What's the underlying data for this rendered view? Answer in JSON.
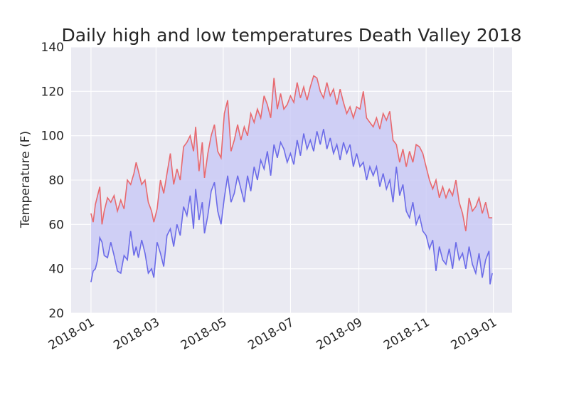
{
  "chart_data": {
    "type": "line",
    "title": "Daily high and low temperatures Death Valley 2018",
    "xlabel": "",
    "ylabel": "Temperature (F)",
    "ylim": [
      20,
      140
    ],
    "xlim": [
      "2017-12-14",
      "2019-01-18"
    ],
    "yticks": [
      "20",
      "40",
      "60",
      "80",
      "100",
      "120",
      "140"
    ],
    "xticks": [
      "2018-01",
      "2018-03",
      "2018-05",
      "2018-07",
      "2018-09",
      "2018-11",
      "2019-01"
    ],
    "grid": true,
    "legend": "none",
    "fill_between": true,
    "colors": {
      "high": "#e8696e",
      "low": "#6b6be8",
      "fill": "#c8c8f5",
      "axes_bg": "#eaeaf2",
      "grid": "#ffffff"
    },
    "series": [
      {
        "key": "high",
        "points": [
          [
            "2018-01-01",
            65
          ],
          [
            "2018-01-03",
            61
          ],
          [
            "2018-01-05",
            69
          ],
          [
            "2018-01-07",
            73
          ],
          [
            "2018-01-09",
            77
          ],
          [
            "2018-01-11",
            60
          ],
          [
            "2018-01-13",
            66
          ],
          [
            "2018-01-16",
            72
          ],
          [
            "2018-01-19",
            70
          ],
          [
            "2018-01-22",
            73
          ],
          [
            "2018-01-25",
            66
          ],
          [
            "2018-01-28",
            71
          ],
          [
            "2018-01-31",
            67
          ],
          [
            "2018-02-03",
            80
          ],
          [
            "2018-02-06",
            78
          ],
          [
            "2018-02-09",
            83
          ],
          [
            "2018-02-11",
            88
          ],
          [
            "2018-02-13",
            84
          ],
          [
            "2018-02-16",
            78
          ],
          [
            "2018-02-19",
            80
          ],
          [
            "2018-02-22",
            70
          ],
          [
            "2018-02-25",
            66
          ],
          [
            "2018-02-27",
            61
          ],
          [
            "2018-03-02",
            67
          ],
          [
            "2018-03-05",
            80
          ],
          [
            "2018-03-08",
            74
          ],
          [
            "2018-03-11",
            83
          ],
          [
            "2018-03-14",
            92
          ],
          [
            "2018-03-17",
            78
          ],
          [
            "2018-03-20",
            85
          ],
          [
            "2018-03-23",
            80
          ],
          [
            "2018-03-26",
            95
          ],
          [
            "2018-03-29",
            97
          ],
          [
            "2018-04-01",
            100
          ],
          [
            "2018-04-04",
            93
          ],
          [
            "2018-04-06",
            104
          ],
          [
            "2018-04-09",
            84
          ],
          [
            "2018-04-12",
            97
          ],
          [
            "2018-04-14",
            81
          ],
          [
            "2018-04-17",
            92
          ],
          [
            "2018-04-20",
            100
          ],
          [
            "2018-04-23",
            105
          ],
          [
            "2018-04-26",
            93
          ],
          [
            "2018-04-29",
            90
          ],
          [
            "2018-05-02",
            110
          ],
          [
            "2018-05-05",
            116
          ],
          [
            "2018-05-08",
            93
          ],
          [
            "2018-05-11",
            98
          ],
          [
            "2018-05-14",
            105
          ],
          [
            "2018-05-17",
            98
          ],
          [
            "2018-05-20",
            104
          ],
          [
            "2018-05-23",
            100
          ],
          [
            "2018-05-26",
            110
          ],
          [
            "2018-05-29",
            106
          ],
          [
            "2018-06-01",
            112
          ],
          [
            "2018-06-04",
            108
          ],
          [
            "2018-06-07",
            118
          ],
          [
            "2018-06-10",
            114
          ],
          [
            "2018-06-13",
            108
          ],
          [
            "2018-06-16",
            126
          ],
          [
            "2018-06-19",
            112
          ],
          [
            "2018-06-22",
            119
          ],
          [
            "2018-06-25",
            112
          ],
          [
            "2018-06-28",
            114
          ],
          [
            "2018-07-01",
            118
          ],
          [
            "2018-07-04",
            115
          ],
          [
            "2018-07-07",
            124
          ],
          [
            "2018-07-10",
            117
          ],
          [
            "2018-07-13",
            122
          ],
          [
            "2018-07-16",
            116
          ],
          [
            "2018-07-19",
            122
          ],
          [
            "2018-07-22",
            127
          ],
          [
            "2018-07-25",
            126
          ],
          [
            "2018-07-28",
            120
          ],
          [
            "2018-07-31",
            117
          ],
          [
            "2018-08-03",
            124
          ],
          [
            "2018-08-06",
            118
          ],
          [
            "2018-08-09",
            121
          ],
          [
            "2018-08-12",
            114
          ],
          [
            "2018-08-15",
            121
          ],
          [
            "2018-08-18",
            115
          ],
          [
            "2018-08-21",
            110
          ],
          [
            "2018-08-24",
            113
          ],
          [
            "2018-08-27",
            108
          ],
          [
            "2018-08-30",
            113
          ],
          [
            "2018-09-02",
            112
          ],
          [
            "2018-09-05",
            120
          ],
          [
            "2018-09-08",
            108
          ],
          [
            "2018-09-11",
            106
          ],
          [
            "2018-09-14",
            104
          ],
          [
            "2018-09-17",
            108
          ],
          [
            "2018-09-20",
            103
          ],
          [
            "2018-09-23",
            110
          ],
          [
            "2018-09-26",
            107
          ],
          [
            "2018-09-29",
            111
          ],
          [
            "2018-10-02",
            98
          ],
          [
            "2018-10-05",
            96
          ],
          [
            "2018-10-08",
            88
          ],
          [
            "2018-10-11",
            94
          ],
          [
            "2018-10-14",
            86
          ],
          [
            "2018-10-17",
            93
          ],
          [
            "2018-10-20",
            88
          ],
          [
            "2018-10-23",
            96
          ],
          [
            "2018-10-26",
            95
          ],
          [
            "2018-10-29",
            92
          ],
          [
            "2018-11-01",
            86
          ],
          [
            "2018-11-04",
            80
          ],
          [
            "2018-11-07",
            76
          ],
          [
            "2018-11-10",
            80
          ],
          [
            "2018-11-13",
            72
          ],
          [
            "2018-11-16",
            77
          ],
          [
            "2018-11-19",
            72
          ],
          [
            "2018-11-22",
            76
          ],
          [
            "2018-11-25",
            73
          ],
          [
            "2018-11-28",
            80
          ],
          [
            "2018-12-01",
            70
          ],
          [
            "2018-12-04",
            65
          ],
          [
            "2018-12-07",
            57
          ],
          [
            "2018-12-10",
            72
          ],
          [
            "2018-12-13",
            66
          ],
          [
            "2018-12-16",
            68
          ],
          [
            "2018-12-19",
            72
          ],
          [
            "2018-12-22",
            65
          ],
          [
            "2018-12-25",
            70
          ],
          [
            "2018-12-28",
            63
          ],
          [
            "2018-12-31",
            63
          ]
        ]
      },
      {
        "key": "low",
        "points": [
          [
            "2018-01-01",
            34
          ],
          [
            "2018-01-03",
            39
          ],
          [
            "2018-01-05",
            40
          ],
          [
            "2018-01-07",
            44
          ],
          [
            "2018-01-09",
            54
          ],
          [
            "2018-01-11",
            52
          ],
          [
            "2018-01-13",
            46
          ],
          [
            "2018-01-16",
            45
          ],
          [
            "2018-01-19",
            52
          ],
          [
            "2018-01-22",
            46
          ],
          [
            "2018-01-25",
            39
          ],
          [
            "2018-01-28",
            38
          ],
          [
            "2018-01-31",
            46
          ],
          [
            "2018-02-03",
            44
          ],
          [
            "2018-02-06",
            57
          ],
          [
            "2018-02-09",
            46
          ],
          [
            "2018-02-11",
            50
          ],
          [
            "2018-02-13",
            45
          ],
          [
            "2018-02-16",
            53
          ],
          [
            "2018-02-19",
            47
          ],
          [
            "2018-02-22",
            38
          ],
          [
            "2018-02-25",
            40
          ],
          [
            "2018-02-27",
            36
          ],
          [
            "2018-03-02",
            52
          ],
          [
            "2018-03-05",
            47
          ],
          [
            "2018-03-08",
            41
          ],
          [
            "2018-03-11",
            55
          ],
          [
            "2018-03-14",
            58
          ],
          [
            "2018-03-17",
            50
          ],
          [
            "2018-03-20",
            60
          ],
          [
            "2018-03-23",
            55
          ],
          [
            "2018-03-26",
            68
          ],
          [
            "2018-03-29",
            64
          ],
          [
            "2018-04-01",
            73
          ],
          [
            "2018-04-04",
            58
          ],
          [
            "2018-04-06",
            76
          ],
          [
            "2018-04-09",
            62
          ],
          [
            "2018-04-12",
            70
          ],
          [
            "2018-04-14",
            56
          ],
          [
            "2018-04-17",
            64
          ],
          [
            "2018-04-20",
            75
          ],
          [
            "2018-04-23",
            79
          ],
          [
            "2018-04-26",
            66
          ],
          [
            "2018-04-29",
            60
          ],
          [
            "2018-05-02",
            72
          ],
          [
            "2018-05-05",
            82
          ],
          [
            "2018-05-08",
            70
          ],
          [
            "2018-05-11",
            74
          ],
          [
            "2018-05-14",
            82
          ],
          [
            "2018-05-17",
            76
          ],
          [
            "2018-05-20",
            70
          ],
          [
            "2018-05-23",
            82
          ],
          [
            "2018-05-26",
            75
          ],
          [
            "2018-05-29",
            86
          ],
          [
            "2018-06-01",
            80
          ],
          [
            "2018-06-04",
            89
          ],
          [
            "2018-06-07",
            85
          ],
          [
            "2018-06-10",
            93
          ],
          [
            "2018-06-13",
            82
          ],
          [
            "2018-06-16",
            96
          ],
          [
            "2018-06-19",
            90
          ],
          [
            "2018-06-22",
            97
          ],
          [
            "2018-06-25",
            94
          ],
          [
            "2018-06-28",
            88
          ],
          [
            "2018-07-01",
            92
          ],
          [
            "2018-07-04",
            87
          ],
          [
            "2018-07-07",
            98
          ],
          [
            "2018-07-10",
            91
          ],
          [
            "2018-07-13",
            101
          ],
          [
            "2018-07-16",
            94
          ],
          [
            "2018-07-19",
            98
          ],
          [
            "2018-07-22",
            93
          ],
          [
            "2018-07-25",
            102
          ],
          [
            "2018-07-28",
            96
          ],
          [
            "2018-07-31",
            103
          ],
          [
            "2018-08-03",
            94
          ],
          [
            "2018-08-06",
            99
          ],
          [
            "2018-08-09",
            92
          ],
          [
            "2018-08-12",
            96
          ],
          [
            "2018-08-15",
            89
          ],
          [
            "2018-08-18",
            97
          ],
          [
            "2018-08-21",
            92
          ],
          [
            "2018-08-24",
            96
          ],
          [
            "2018-08-27",
            86
          ],
          [
            "2018-08-30",
            92
          ],
          [
            "2018-09-02",
            86
          ],
          [
            "2018-09-05",
            88
          ],
          [
            "2018-09-08",
            80
          ],
          [
            "2018-09-11",
            86
          ],
          [
            "2018-09-14",
            82
          ],
          [
            "2018-09-17",
            86
          ],
          [
            "2018-09-20",
            77
          ],
          [
            "2018-09-23",
            83
          ],
          [
            "2018-09-26",
            76
          ],
          [
            "2018-09-29",
            80
          ],
          [
            "2018-10-02",
            70
          ],
          [
            "2018-10-05",
            86
          ],
          [
            "2018-10-08",
            73
          ],
          [
            "2018-10-11",
            78
          ],
          [
            "2018-10-14",
            66
          ],
          [
            "2018-10-17",
            63
          ],
          [
            "2018-10-20",
            70
          ],
          [
            "2018-10-23",
            60
          ],
          [
            "2018-10-26",
            64
          ],
          [
            "2018-10-29",
            57
          ],
          [
            "2018-11-01",
            55
          ],
          [
            "2018-11-04",
            49
          ],
          [
            "2018-11-07",
            53
          ],
          [
            "2018-11-10",
            39
          ],
          [
            "2018-11-13",
            50
          ],
          [
            "2018-11-16",
            44
          ],
          [
            "2018-11-19",
            42
          ],
          [
            "2018-11-22",
            49
          ],
          [
            "2018-11-25",
            40
          ],
          [
            "2018-11-28",
            52
          ],
          [
            "2018-12-01",
            44
          ],
          [
            "2018-12-04",
            47
          ],
          [
            "2018-12-07",
            40
          ],
          [
            "2018-12-10",
            50
          ],
          [
            "2018-12-13",
            42
          ],
          [
            "2018-12-16",
            38
          ],
          [
            "2018-12-19",
            47
          ],
          [
            "2018-12-22",
            36
          ],
          [
            "2018-12-25",
            44
          ],
          [
            "2018-12-28",
            48
          ],
          [
            "2018-12-29",
            33
          ],
          [
            "2018-12-31",
            38
          ]
        ]
      }
    ]
  }
}
